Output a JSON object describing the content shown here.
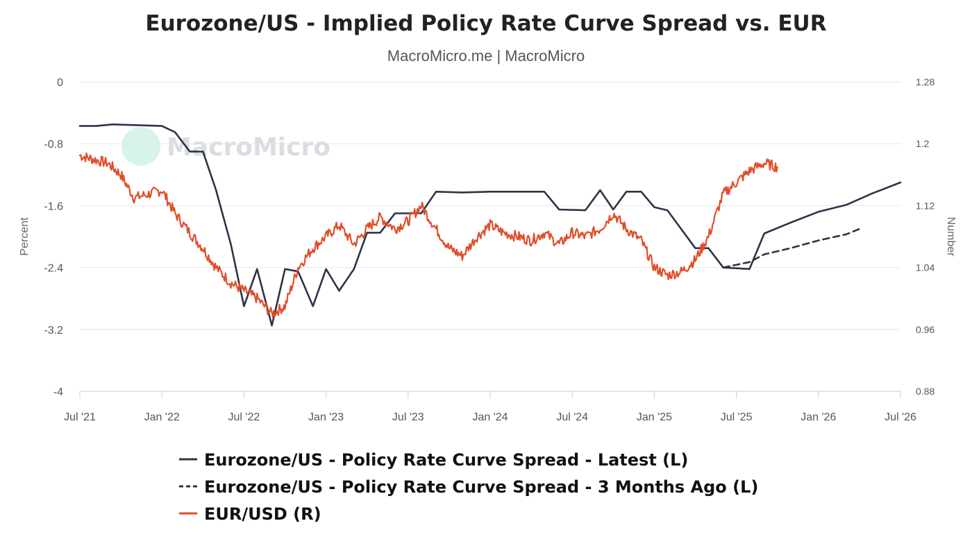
{
  "chart_data": {
    "type": "line",
    "title": "Eurozone/US - Implied Policy Rate Curve Spread vs. EUR",
    "subtitle": "MacroMicro.me | MacroMicro",
    "watermark": "MacroMicro",
    "x_ticks": [
      "Jul '21",
      "Jan '22",
      "Jul '22",
      "Jan '23",
      "Jul '23",
      "Jan '24",
      "Jul '24",
      "Jan '25",
      "Jul '25",
      "Jan '26",
      "Jul '26"
    ],
    "xlim": [
      2021.5,
      2026.5
    ],
    "left_axis": {
      "title": "Percent",
      "ylim": [
        -4,
        0
      ],
      "ticks": [
        "0",
        "-0.8",
        "-1.6",
        "-2.4",
        "-3.2",
        "-4"
      ],
      "tick_values": [
        0,
        -0.8,
        -1.6,
        -2.4,
        -3.2,
        -4
      ]
    },
    "right_axis": {
      "title": "Number",
      "ylim": [
        0.88,
        1.28
      ],
      "ticks": [
        "1.28",
        "1.2",
        "1.12",
        "1.04",
        "0.96",
        "0.88"
      ],
      "tick_values": [
        1.28,
        1.2,
        1.12,
        1.04,
        0.96,
        0.88
      ]
    },
    "grid": true,
    "legend_position": "bottom",
    "series": [
      {
        "name": "Eurozone/US - Policy Rate Curve Spread - Latest (L)",
        "axis": "left",
        "style": "solid",
        "color": "#2f3245",
        "x": [
          2021.5,
          2021.6,
          2021.7,
          2021.85,
          2022.0,
          2022.08,
          2022.17,
          2022.25,
          2022.33,
          2022.42,
          2022.5,
          2022.58,
          2022.67,
          2022.75,
          2022.83,
          2022.92,
          2023.0,
          2023.08,
          2023.17,
          2023.25,
          2023.33,
          2023.42,
          2023.58,
          2023.67,
          2023.83,
          2024.0,
          2024.17,
          2024.33,
          2024.42,
          2024.58,
          2024.67,
          2024.75,
          2024.83,
          2024.92,
          2025.0,
          2025.08,
          2025.25,
          2025.33,
          2025.42,
          2025.58,
          2025.67,
          2025.83,
          2026.0,
          2026.17,
          2026.33,
          2026.5
        ],
        "y": [
          -0.57,
          -0.57,
          -0.55,
          -0.56,
          -0.57,
          -0.65,
          -0.9,
          -0.9,
          -1.4,
          -2.1,
          -2.9,
          -2.42,
          -3.15,
          -2.42,
          -2.45,
          -2.9,
          -2.42,
          -2.7,
          -2.42,
          -1.95,
          -1.95,
          -1.7,
          -1.7,
          -1.42,
          -1.43,
          -1.42,
          -1.42,
          -1.42,
          -1.65,
          -1.66,
          -1.4,
          -1.65,
          -1.42,
          -1.42,
          -1.62,
          -1.66,
          -2.15,
          -2.15,
          -2.4,
          -2.42,
          -1.96,
          -1.82,
          -1.68,
          -1.59,
          -1.44,
          -1.3
        ]
      },
      {
        "name": "Eurozone/US - Policy Rate Curve Spread - 3 Months Ago (L)",
        "axis": "left",
        "style": "dashed",
        "color": "#2f3245",
        "x": [
          2025.42,
          2025.58,
          2025.67,
          2025.83,
          2026.0,
          2026.17,
          2026.25
        ],
        "y": [
          -2.4,
          -2.33,
          -2.23,
          -2.15,
          -2.05,
          -1.97,
          -1.9
        ]
      },
      {
        "name": "EUR/USD (R)",
        "axis": "right",
        "style": "solid",
        "color": "#e04e2c",
        "x": [
          2021.5,
          2021.58,
          2021.67,
          2021.75,
          2021.83,
          2021.92,
          2022.0,
          2022.08,
          2022.17,
          2022.25,
          2022.33,
          2022.42,
          2022.5,
          2022.58,
          2022.67,
          2022.75,
          2022.83,
          2022.92,
          2023.0,
          2023.08,
          2023.17,
          2023.25,
          2023.33,
          2023.42,
          2023.5,
          2023.58,
          2023.67,
          2023.75,
          2023.83,
          2023.92,
          2024.0,
          2024.08,
          2024.17,
          2024.25,
          2024.33,
          2024.42,
          2024.5,
          2024.58,
          2024.67,
          2024.75,
          2024.83,
          2024.92,
          2025.0,
          2025.08,
          2025.17,
          2025.25,
          2025.33,
          2025.42,
          2025.5,
          2025.58,
          2025.67,
          2025.75
        ],
        "y": [
          1.185,
          1.18,
          1.175,
          1.16,
          1.13,
          1.135,
          1.14,
          1.11,
          1.085,
          1.065,
          1.04,
          1.02,
          1.01,
          1.0,
          0.98,
          0.99,
          1.04,
          1.065,
          1.08,
          1.095,
          1.07,
          1.09,
          1.105,
          1.09,
          1.1,
          1.12,
          1.09,
          1.065,
          1.055,
          1.08,
          1.095,
          1.085,
          1.08,
          1.075,
          1.085,
          1.07,
          1.085,
          1.08,
          1.09,
          1.11,
          1.09,
          1.075,
          1.04,
          1.03,
          1.035,
          1.05,
          1.08,
          1.135,
          1.15,
          1.165,
          1.175,
          1.17
        ]
      }
    ]
  }
}
